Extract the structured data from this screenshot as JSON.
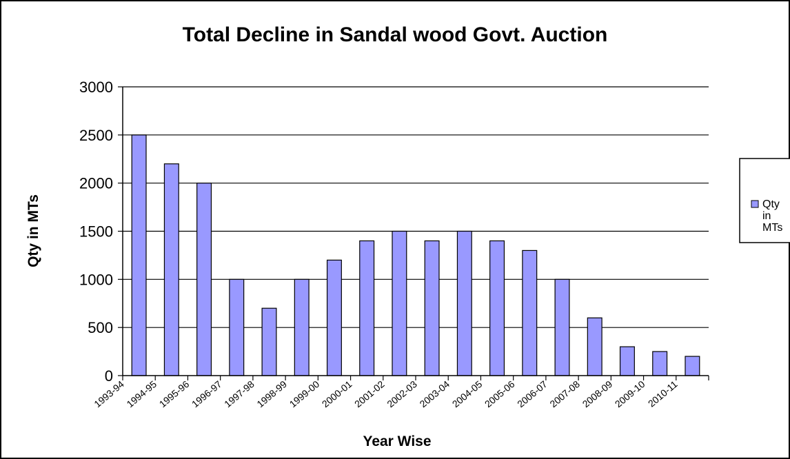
{
  "chart_data": {
    "type": "bar",
    "title": "Total Decline in Sandal wood Govt. Auction",
    "xlabel": "Year Wise",
    "ylabel": "Qty in MTs",
    "ylim": [
      0,
      3000
    ],
    "yticks": [
      0,
      500,
      1000,
      1500,
      2000,
      2500,
      3000
    ],
    "grid": true,
    "legend_position": "right",
    "categories": [
      "1993-94",
      "1994-95",
      "1995-96",
      "1996-97",
      "1997-98",
      "1998-99",
      "1999-00",
      "2000-01",
      "2001-02",
      "2002-03",
      "2003-04",
      "2004-05",
      "2005-06",
      "2006-07",
      "2007-08",
      "2008-09",
      "2009-10",
      "2010-11"
    ],
    "series": [
      {
        "name": "Qty in MTs",
        "legend_lines": [
          "Qty",
          "in",
          "MTs"
        ],
        "color": "#9999ff",
        "values": [
          2500,
          2200,
          2000,
          1000,
          700,
          1000,
          1200,
          1400,
          1500,
          1400,
          1500,
          1400,
          1300,
          1000,
          600,
          300,
          250,
          200
        ]
      }
    ]
  }
}
